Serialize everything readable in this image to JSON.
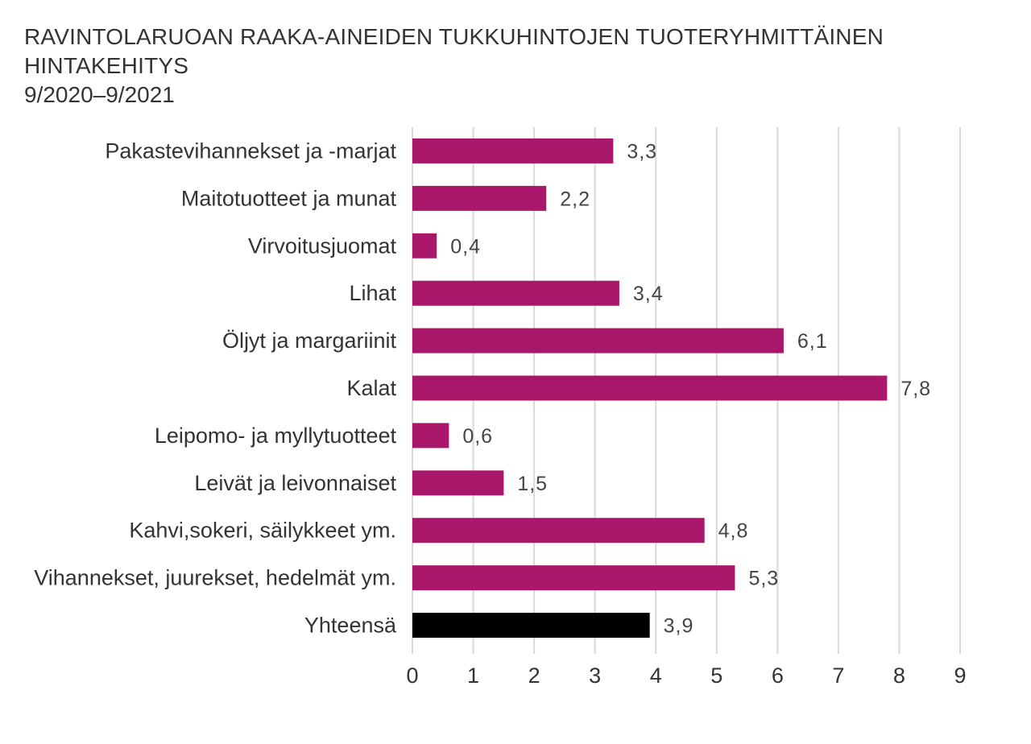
{
  "chart_data": {
    "type": "bar",
    "orientation": "horizontal",
    "title": "RAVINTOLARUOAN RAAKA-AINEIDEN TUKKUHINTOJEN TUOTERYHMITTÄINEN HINTAKEHITYS",
    "subtitle": "9/2020–9/2021",
    "categories": [
      "Pakastevihannekset ja -marjat",
      "Maitotuotteet ja munat",
      "Virvoitusjuomat",
      "Lihat",
      "Öljyt ja margariinit",
      "Kalat",
      "Leipomo- ja myllytuotteet",
      "Leivät ja leivonnaiset",
      "Kahvi,sokeri, säilykkeet ym.",
      "Vihannekset, juurekset, hedelmät ym.",
      "Yhteensä"
    ],
    "values": [
      3.3,
      2.2,
      0.4,
      3.4,
      6.1,
      7.8,
      0.6,
      1.5,
      4.8,
      5.3,
      3.9
    ],
    "value_labels": [
      "3,3",
      "2,2",
      "0,4",
      "3,4",
      "6,1",
      "7,8",
      "0,6",
      "1,5",
      "4,8",
      "5,3",
      "3,9"
    ],
    "xlim": [
      0,
      9
    ],
    "xticks": [
      "0",
      "1",
      "2",
      "3",
      "4",
      "5",
      "6",
      "7",
      "8",
      "9"
    ],
    "grid": "vertical",
    "colors": {
      "bar": "#a8176a",
      "total_bar": "#000000",
      "grid": "#d9d9d9",
      "text": "#333333"
    }
  }
}
